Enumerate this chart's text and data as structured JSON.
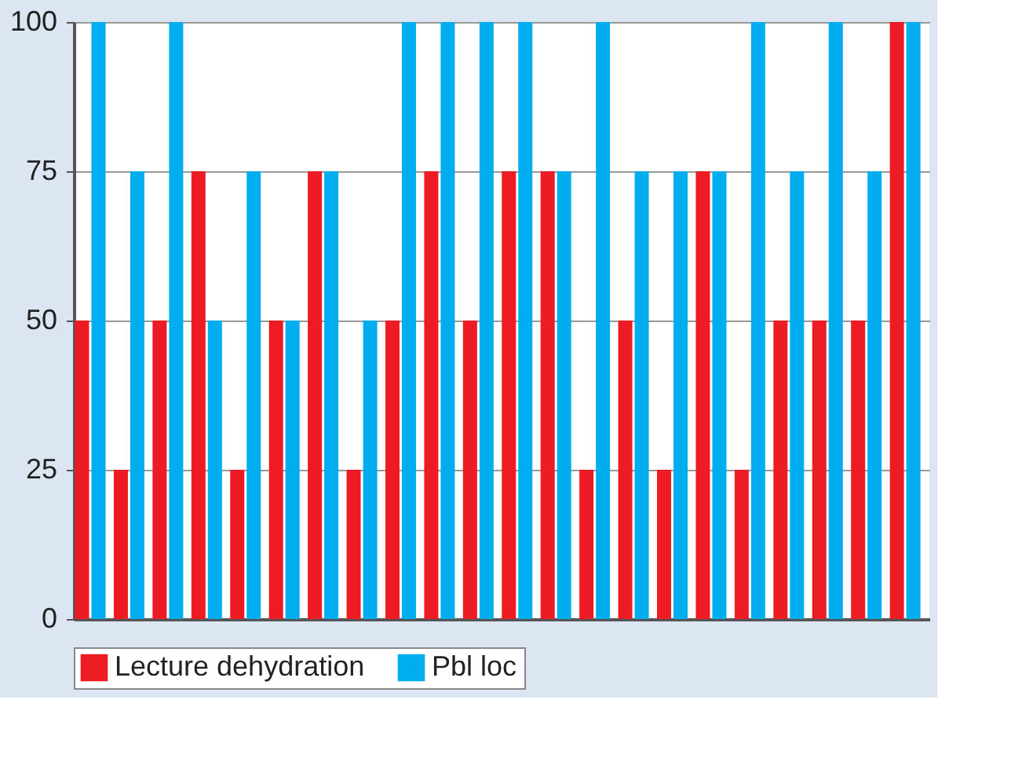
{
  "chart_data": {
    "type": "bar",
    "categories": [
      null,
      null,
      null,
      null,
      null,
      null,
      null,
      null,
      null,
      null,
      null,
      null,
      null,
      null,
      null,
      null,
      null,
      null,
      null,
      null,
      null,
      null
    ],
    "series": [
      {
        "name": "Lecture dehydration",
        "color": "#ed1c24",
        "values": [
          50,
          25,
          50,
          75,
          25,
          50,
          75,
          25,
          50,
          75,
          50,
          75,
          75,
          25,
          50,
          25,
          75,
          25,
          50,
          50,
          50,
          100
        ]
      },
      {
        "name": "Pbl loc",
        "color": "#00aeef",
        "values": [
          100,
          75,
          100,
          50,
          75,
          50,
          75,
          50,
          100,
          100,
          100,
          100,
          75,
          100,
          75,
          75,
          75,
          100,
          75,
          100,
          75,
          100
        ]
      }
    ],
    "ylim": [
      0,
      100
    ],
    "yticks": [
      0,
      25,
      50,
      75,
      100
    ],
    "grid": "y",
    "legend": "bottom",
    "tick_labels": "y"
  }
}
